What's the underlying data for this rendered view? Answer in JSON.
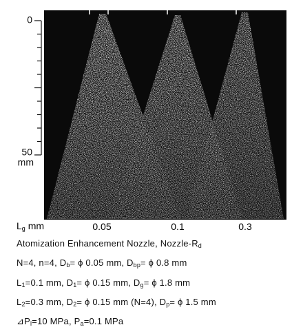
{
  "ruler": {
    "labels": [
      "0",
      "50"
    ],
    "unit": "mm"
  },
  "gap_label": {
    "text": "L",
    "sub": "g",
    "unit": " mm"
  },
  "sprays": [
    "0.05",
    "0.1",
    "0.3"
  ],
  "lines": [
    [
      "Atomization Enhancement Nozzle, Nozzle-R",
      {
        "sub": "d"
      }
    ],
    [
      "N=4, n=4, D",
      {
        "sub": "b"
      },
      "= ϕ 0.05 mm, D",
      {
        "sub": "bp"
      },
      "= ϕ 0.8 mm"
    ],
    [
      "L",
      {
        "sub": "1"
      },
      "=0.1 mm, D",
      {
        "sub": "1"
      },
      "= ϕ 0.15 mm, D",
      {
        "sub": "g"
      },
      "= ϕ 1.8 mm"
    ],
    [
      "L",
      {
        "sub": "2"
      },
      "=0.3 mm, D",
      {
        "sub": "2"
      },
      "= ϕ 0.15 mm (N=4), D",
      {
        "sub": "p"
      },
      "= ϕ 1.5 mm"
    ],
    [
      "⊿P",
      {
        "sub": "l"
      },
      "=10 MPa, P",
      {
        "sub": "a"
      },
      "=0.1 MPa"
    ]
  ]
}
